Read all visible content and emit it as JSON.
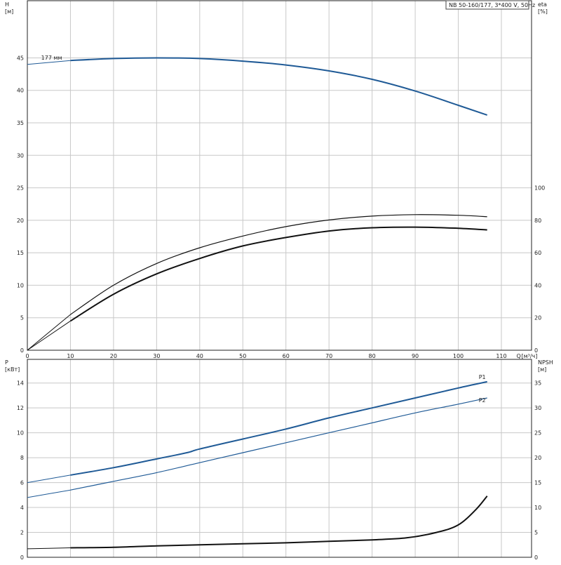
{
  "colors": {
    "blue": "#1f5a96",
    "black": "#111111",
    "grid": "#c8c8c8"
  },
  "chart_data": [
    {
      "type": "line",
      "title": "NB 50-160/177, 3*400 V, 50Hz",
      "xlabel": "Q",
      "xunit": "[м³/ч]",
      "x_ticks": [
        0,
        10,
        20,
        30,
        40,
        50,
        60,
        70,
        80,
        90,
        100,
        110
      ],
      "xlim": [
        0,
        117
      ],
      "ylabel": "H",
      "yunit": "[м]",
      "y_ticks": [
        0,
        5,
        10,
        15,
        20,
        25,
        30,
        35,
        40,
        45
      ],
      "ylim": [
        0,
        53.8
      ],
      "y2label": "eta",
      "y2unit": "[%]",
      "y2_ticks": [
        0,
        20,
        40,
        60,
        80,
        100
      ],
      "y2lim": [
        0,
        215.2
      ],
      "grid": true,
      "series": [
        {
          "name": "177 мм",
          "axis": "left",
          "color": "#1f5a96",
          "x": [
            0,
            10,
            20,
            30,
            40,
            50,
            60,
            70,
            80,
            90,
            100,
            106.7
          ],
          "y": [
            44.0,
            44.6,
            44.9,
            45.0,
            44.9,
            44.5,
            43.9,
            43.0,
            41.7,
            39.9,
            37.7,
            36.2
          ]
        },
        {
          "name": "",
          "axis": "right",
          "color": "#111111",
          "x": [
            0,
            10,
            20,
            30,
            40,
            50,
            60,
            70,
            80,
            90,
            100,
            106.7
          ],
          "y": [
            0,
            18.0,
            34.5,
            47.0,
            56.5,
            64.2,
            69.4,
            73.4,
            75.4,
            75.8,
            75.1,
            74.1
          ]
        },
        {
          "name": "",
          "axis": "right",
          "color": "#111111",
          "x": [
            0,
            10,
            20,
            30,
            40,
            50,
            60,
            70,
            80,
            90,
            100,
            106.7
          ],
          "y": [
            0,
            22.0,
            40.0,
            53.4,
            63.1,
            70.3,
            76.1,
            80.2,
            82.6,
            83.5,
            83.1,
            82.2
          ]
        }
      ]
    },
    {
      "type": "line",
      "xlim": [
        0,
        117
      ],
      "ylabel": "P",
      "yunit": "[кВт]",
      "y_ticks": [
        0,
        2,
        4,
        6,
        8,
        10,
        12,
        14
      ],
      "ylim": [
        0,
        15.9
      ],
      "y2label": "NPSH",
      "y2unit": "[м]",
      "y2_ticks": [
        0,
        5,
        10,
        15,
        20,
        25,
        30,
        35
      ],
      "y2lim": [
        0,
        39.75
      ],
      "grid": true,
      "series": [
        {
          "name": "P1",
          "axis": "left",
          "color": "#1f5a96",
          "x": [
            0,
            10,
            20,
            30,
            37,
            40,
            50,
            60,
            70,
            80,
            90,
            100,
            106.7
          ],
          "y": [
            6.0,
            6.6,
            7.2,
            7.9,
            8.4,
            8.7,
            9.5,
            10.3,
            11.2,
            12.0,
            12.8,
            13.6,
            14.1
          ]
        },
        {
          "name": "P2",
          "axis": "left",
          "color": "#1f5a96",
          "x": [
            0,
            10,
            20,
            30,
            40,
            50,
            60,
            70,
            80,
            90,
            100,
            106.7
          ],
          "y": [
            4.8,
            5.4,
            6.1,
            6.8,
            7.6,
            8.4,
            9.2,
            10.0,
            10.8,
            11.6,
            12.3,
            12.8
          ]
        },
        {
          "name": "",
          "axis": "right",
          "color": "#111111",
          "x": [
            0,
            10,
            20,
            30,
            40,
            50,
            60,
            70,
            80,
            88,
            95,
            100,
            104,
            106.7
          ],
          "y": [
            1.7,
            1.9,
            2.0,
            2.3,
            2.5,
            2.7,
            2.9,
            3.2,
            3.5,
            3.9,
            5.0,
            6.5,
            9.5,
            12.3
          ]
        }
      ]
    }
  ]
}
